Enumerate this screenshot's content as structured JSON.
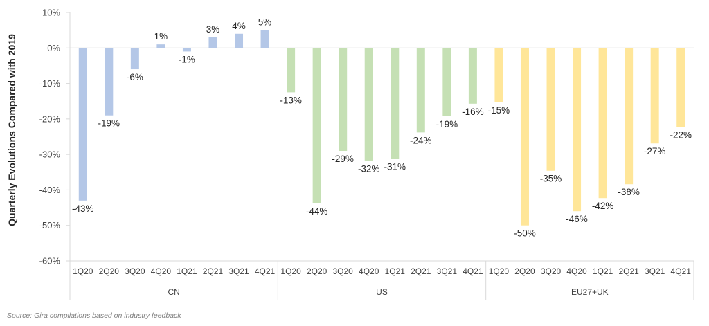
{
  "chart_data": {
    "type": "bar",
    "ylabel": "Quarterly Evolutions Compared with 2019",
    "ylim": [
      -60,
      10
    ],
    "yticks": [
      10,
      0,
      -10,
      -20,
      -30,
      -40,
      -50,
      -60
    ],
    "ytick_labels": [
      "10%",
      "0%",
      "-10%",
      "-20%",
      "-30%",
      "-40%",
      "-50%",
      "-60%"
    ],
    "grid": false,
    "groups": [
      {
        "name": "CN",
        "color": "#b4c7e7",
        "categories": [
          "1Q20",
          "2Q20",
          "3Q20",
          "4Q20",
          "1Q21",
          "2Q21",
          "3Q21",
          "4Q21"
        ],
        "values": [
          -43,
          -19,
          -6,
          1,
          -1,
          3,
          4,
          5
        ],
        "labels": [
          "-43%",
          "-19%",
          "-6%",
          "1%",
          "-1%",
          "3%",
          "4%",
          "5%"
        ]
      },
      {
        "name": "US",
        "color": "#c5e0b4",
        "categories": [
          "1Q20",
          "2Q20",
          "3Q20",
          "4Q20",
          "1Q21",
          "2Q21",
          "3Q21",
          "4Q21"
        ],
        "values": [
          -12.5,
          -43.8,
          -29,
          -31.8,
          -31.2,
          -23.8,
          -19.2,
          -15.7
        ],
        "labels": [
          "-13%",
          "-44%",
          "-29%",
          "-32%",
          "-31%",
          "-24%",
          "-19%",
          "-16%"
        ]
      },
      {
        "name": "EU27+UK",
        "color": "#ffe699",
        "categories": [
          "1Q20",
          "2Q20",
          "3Q20",
          "4Q20",
          "1Q21",
          "2Q21",
          "3Q21",
          "4Q21"
        ],
        "values": [
          -15.3,
          -50,
          -34.6,
          -46,
          -42.3,
          -38.4,
          -26.9,
          -22.3
        ],
        "labels": [
          "-15%",
          "-50%",
          "-35%",
          "-46%",
          "-42%",
          "-38%",
          "-27%",
          "-22%"
        ]
      }
    ]
  },
  "source": "Source: Gira compilations based on industry feedback"
}
